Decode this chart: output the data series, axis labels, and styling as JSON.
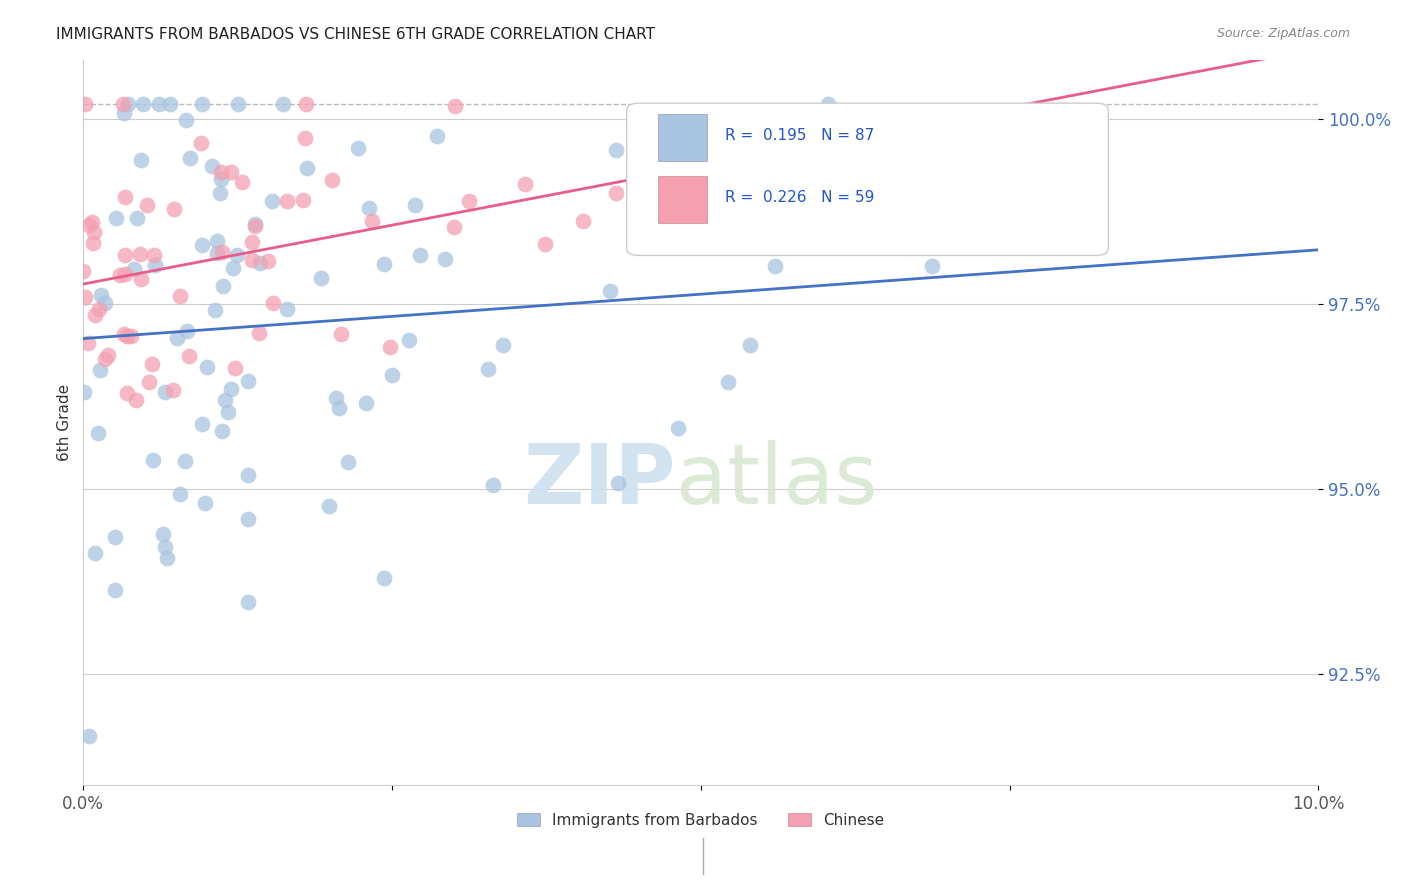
{
  "title": "IMMIGRANTS FROM BARBADOS VS CHINESE 6TH GRADE CORRELATION CHART",
  "source": "Source: ZipAtlas.com",
  "ylabel": "6th Grade",
  "ytick_labels": [
    "92.5%",
    "95.0%",
    "97.5%",
    "100.0%"
  ],
  "ytick_values": [
    0.925,
    0.95,
    0.975,
    1.0
  ],
  "xlim": [
    0.0,
    0.1
  ],
  "ylim": [
    0.91,
    1.008
  ],
  "legend_blue_label": "R =  0.195   N = 87",
  "legend_pink_label": "R =  0.226   N = 59",
  "legend_label1": "Immigrants from Barbados",
  "legend_label2": "Chinese",
  "blue_color": "#a8c4e0",
  "pink_color": "#f4a0b0",
  "blue_line_color": "#4472c4",
  "pink_line_color": "#e85d8a",
  "blue_r": 0.195,
  "blue_n": 87,
  "pink_r": 0.226,
  "pink_n": 59,
  "watermark_zip": "ZIP",
  "watermark_atlas": "atlas"
}
